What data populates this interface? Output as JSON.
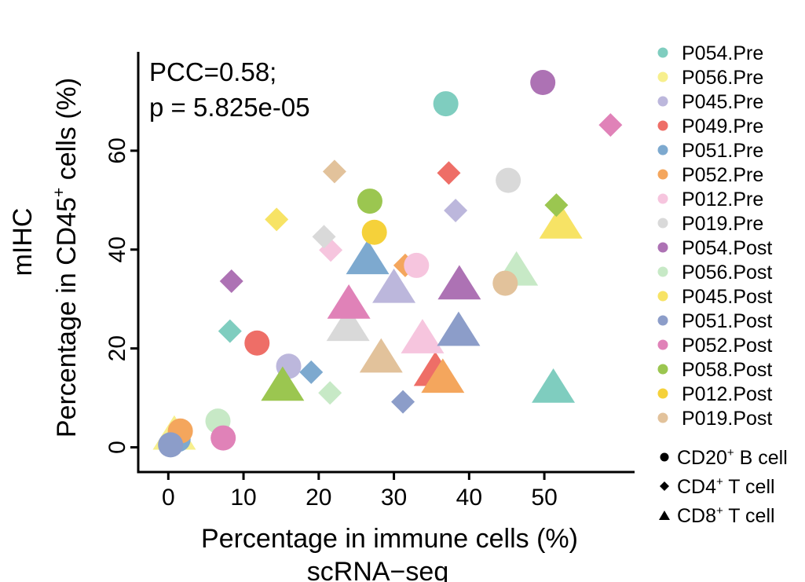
{
  "chart_data": {
    "type": "scatter",
    "xlabel": "Percentage in immune cells (%)",
    "xlabel2": "scRNA−seq",
    "ylabel_prefix": "Percentage in CD45",
    "ylabel_sup": "+",
    "ylabel_suffix": " cells (%)",
    "ylabel2": "mIHC",
    "xlim": [
      -4,
      62
    ],
    "ylim": [
      -5,
      80
    ],
    "xticks": [
      0,
      10,
      20,
      30,
      40,
      50
    ],
    "yticks": [
      0,
      20,
      40,
      60
    ],
    "annotation": [
      "PCC=0.58;",
      "p = 5.825e-05"
    ],
    "groups": [
      {
        "name": "P054.Pre",
        "color": "#7fcdbf"
      },
      {
        "name": "P056.Pre",
        "color": "#f7ef8d"
      },
      {
        "name": "P045.Pre",
        "color": "#bcb7dc"
      },
      {
        "name": "P049.Pre",
        "color": "#ee6e67"
      },
      {
        "name": "P051.Pre",
        "color": "#7da9cf"
      },
      {
        "name": "P052.Pre",
        "color": "#f4a65d"
      },
      {
        "name": "P012.Pre",
        "color": "#f6c5de"
      },
      {
        "name": "P019.Pre",
        "color": "#d9d9d9"
      },
      {
        "name": "P054.Post",
        "color": "#ad72b4"
      },
      {
        "name": "P056.Post",
        "color": "#c7e9c6"
      },
      {
        "name": "P045.Post",
        "color": "#f7e365"
      },
      {
        "name": "P051.Post",
        "color": "#8c9dc9"
      },
      {
        "name": "P052.Post",
        "color": "#e082b8"
      },
      {
        "name": "P058.Post",
        "color": "#9bc650"
      },
      {
        "name": "P012.Post",
        "color": "#f5d13a"
      },
      {
        "name": "P019.Post",
        "color": "#e2c29b"
      }
    ],
    "shapes": [
      {
        "key": "circle",
        "label_prefix": "CD20",
        "label_sup": "+",
        "label_suffix": " B cell"
      },
      {
        "key": "diamond",
        "label_prefix": "CD4",
        "label_sup": "+",
        "label_suffix": " T cell"
      },
      {
        "key": "triangle",
        "label_prefix": "CD8",
        "label_sup": "+",
        "label_suffix": " T cell"
      }
    ],
    "points": [
      {
        "group": "P054.Pre",
        "shape": "circle",
        "x": 36.9,
        "y": 69.5
      },
      {
        "group": "P054.Pre",
        "shape": "diamond",
        "x": 8.2,
        "y": 23.5
      },
      {
        "group": "P054.Pre",
        "shape": "triangle",
        "x": 51.2,
        "y": 11.8
      },
      {
        "group": "P056.Pre",
        "shape": "triangle",
        "x": 0.8,
        "y": 2.3
      },
      {
        "group": "P045.Pre",
        "shape": "circle",
        "x": 16.0,
        "y": 16.4
      },
      {
        "group": "P045.Pre",
        "shape": "diamond",
        "x": 38.2,
        "y": 47.9
      },
      {
        "group": "P045.Pre",
        "shape": "triangle",
        "x": 30.0,
        "y": 32.0
      },
      {
        "group": "P049.Pre",
        "shape": "circle",
        "x": 11.8,
        "y": 21.1
      },
      {
        "group": "P049.Pre",
        "shape": "diamond",
        "x": 37.3,
        "y": 55.5
      },
      {
        "group": "P049.Pre",
        "shape": "triangle",
        "x": 35.5,
        "y": 15.2
      },
      {
        "group": "P051.Pre",
        "shape": "circle",
        "x": 1.3,
        "y": 1.6
      },
      {
        "group": "P051.Pre",
        "shape": "diamond",
        "x": 19.0,
        "y": 15.2
      },
      {
        "group": "P051.Pre",
        "shape": "triangle",
        "x": 26.5,
        "y": 37.8
      },
      {
        "group": "P052.Pre",
        "shape": "circle",
        "x": 1.6,
        "y": 3.3
      },
      {
        "group": "P052.Pre",
        "shape": "diamond",
        "x": 31.5,
        "y": 36.8
      },
      {
        "group": "P052.Pre",
        "shape": "triangle",
        "x": 36.5,
        "y": 13.8
      },
      {
        "group": "P012.Pre",
        "shape": "circle",
        "x": 33.0,
        "y": 36.8
      },
      {
        "group": "P012.Pre",
        "shape": "diamond",
        "x": 21.6,
        "y": 39.9
      },
      {
        "group": "P012.Pre",
        "shape": "triangle",
        "x": 33.8,
        "y": 21.8
      },
      {
        "group": "P019.Pre",
        "shape": "circle",
        "x": 45.2,
        "y": 54.0
      },
      {
        "group": "P019.Pre",
        "shape": "diamond",
        "x": 20.7,
        "y": 42.6
      },
      {
        "group": "P019.Pre",
        "shape": "triangle",
        "x": 23.9,
        "y": 24.3
      },
      {
        "group": "P054.Post",
        "shape": "circle",
        "x": 49.8,
        "y": 73.8
      },
      {
        "group": "P054.Post",
        "shape": "diamond",
        "x": 8.4,
        "y": 33.6
      },
      {
        "group": "P054.Post",
        "shape": "triangle",
        "x": 38.7,
        "y": 32.7
      },
      {
        "group": "P056.Post",
        "shape": "circle",
        "x": 6.6,
        "y": 5.3
      },
      {
        "group": "P056.Post",
        "shape": "diamond",
        "x": 21.5,
        "y": 11.0
      },
      {
        "group": "P056.Post",
        "shape": "triangle",
        "x": 46.3,
        "y": 35.5
      },
      {
        "group": "P045.Post",
        "shape": "diamond",
        "x": 14.4,
        "y": 46.1
      },
      {
        "group": "P045.Post",
        "shape": "triangle",
        "x": 52.2,
        "y": 45.0
      },
      {
        "group": "P051.Post",
        "shape": "circle",
        "x": 0.3,
        "y": 0.5
      },
      {
        "group": "P051.Post",
        "shape": "diamond",
        "x": 31.2,
        "y": 9.2
      },
      {
        "group": "P051.Post",
        "shape": "triangle",
        "x": 38.6,
        "y": 23.3
      },
      {
        "group": "P052.Post",
        "shape": "circle",
        "x": 7.3,
        "y": 1.9
      },
      {
        "group": "P052.Post",
        "shape": "diamond",
        "x": 58.8,
        "y": 65.2
      },
      {
        "group": "P052.Post",
        "shape": "triangle",
        "x": 24.0,
        "y": 28.8
      },
      {
        "group": "P058.Post",
        "shape": "circle",
        "x": 26.8,
        "y": 49.8
      },
      {
        "group": "P058.Post",
        "shape": "diamond",
        "x": 51.6,
        "y": 49.0
      },
      {
        "group": "P058.Post",
        "shape": "triangle",
        "x": 15.2,
        "y": 12.2
      },
      {
        "group": "P012.Post",
        "shape": "circle",
        "x": 27.4,
        "y": 43.5
      },
      {
        "group": "P019.Post",
        "shape": "circle",
        "x": 44.8,
        "y": 33.2
      },
      {
        "group": "P019.Post",
        "shape": "diamond",
        "x": 22.1,
        "y": 55.8
      },
      {
        "group": "P019.Post",
        "shape": "triangle",
        "x": 28.3,
        "y": 17.9
      }
    ]
  }
}
